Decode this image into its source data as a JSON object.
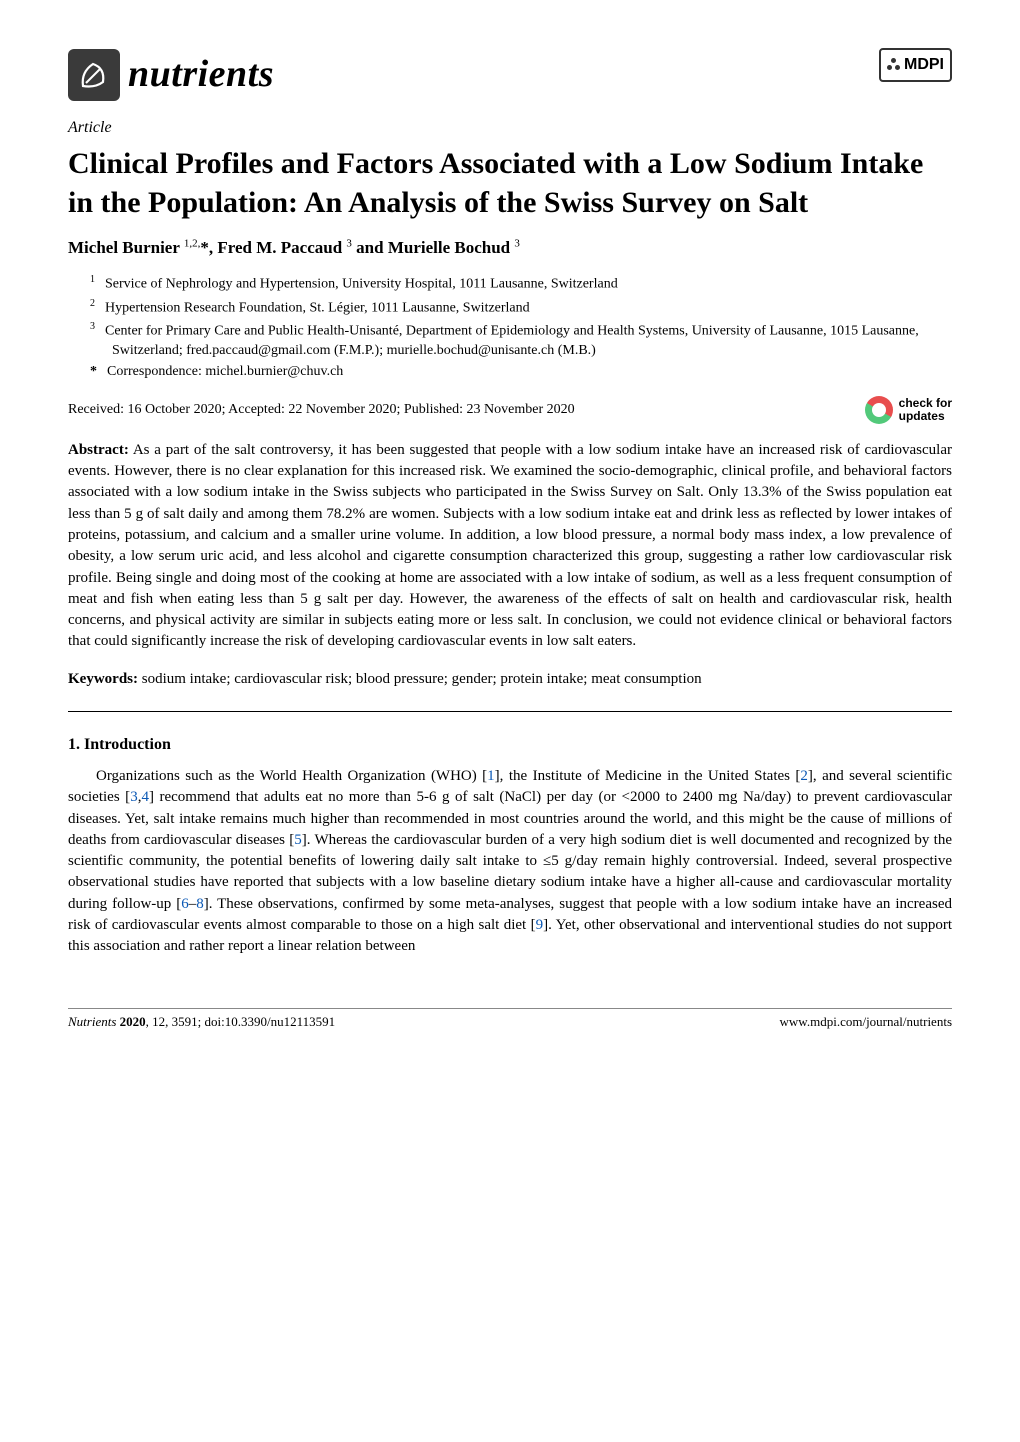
{
  "header": {
    "journal_name": "nutrients",
    "publisher": "MDPI",
    "article_type": "Article",
    "title": "Clinical Profiles and Factors Associated with a Low Sodium Intake in the Population: An Analysis of the Swiss Survey on Salt",
    "authors_html": "Michel Burnier <sup>1,2,</sup>*, Fred M. Paccaud <sup>3</sup> and Murielle Bochud <sup>3</sup>"
  },
  "affiliations": {
    "a1": {
      "num": "1",
      "text": "Service of Nephrology and Hypertension, University Hospital, 1011 Lausanne, Switzerland"
    },
    "a2": {
      "num": "2",
      "text": "Hypertension Research Foundation, St. Légier, 1011 Lausanne, Switzerland"
    },
    "a3": {
      "num": "3",
      "text": "Center for Primary Care and Public Health-Unisanté, Department of Epidemiology and Health Systems, University of Lausanne, 1015 Lausanne, Switzerland; fred.paccaud@gmail.com (F.M.P.); murielle.bochud@unisante.ch (M.B.)"
    },
    "corr": {
      "mark": "*",
      "text": "Correspondence: michel.burnier@chuv.ch"
    }
  },
  "dates": "Received: 16 October 2020; Accepted: 22 November 2020; Published: 23 November 2020",
  "updates": {
    "line1": "check for",
    "line2": "updates"
  },
  "abstract": {
    "label": "Abstract:",
    "text": " As a part of the salt controversy, it has been suggested that people with a low sodium intake have an increased risk of cardiovascular events. However, there is no clear explanation for this increased risk. We examined the socio-demographic, clinical profile, and behavioral factors associated with a low sodium intake in the Swiss subjects who participated in the Swiss Survey on Salt. Only 13.3% of the Swiss population eat less than 5 g of salt daily and among them 78.2% are women. Subjects with a low sodium intake eat and drink less as reflected by lower intakes of proteins, potassium, and calcium and a smaller urine volume. In addition, a low blood pressure, a normal body mass index, a low prevalence of obesity, a low serum uric acid, and less alcohol and cigarette consumption characterized this group, suggesting a rather low cardiovascular risk profile. Being single and doing most of the cooking at home are associated with a low intake of sodium, as well as a less frequent consumption of meat and fish when eating less than 5 g salt per day. However, the awareness of the effects of salt on health and cardiovascular risk, health concerns, and physical activity are similar in subjects eating more or less salt. In conclusion, we could not evidence clinical or behavioral factors that could significantly increase the risk of developing cardiovascular events in low salt eaters."
  },
  "keywords": {
    "label": "Keywords:",
    "text": "  sodium intake; cardiovascular risk; blood pressure; gender; protein intake; meat consumption"
  },
  "section1": {
    "heading": "1. Introduction"
  },
  "intro": {
    "p1a": "Organizations such as the World Health Organization (WHO) [",
    "r1": "1",
    "p1b": "], the Institute of Medicine in the United States [",
    "r2": "2",
    "p1c": "], and several scientific societies [",
    "r3": "3",
    "p1d": ",",
    "r4": "4",
    "p1e": "] recommend that adults eat no more than 5-6 g of salt (NaCl) per day (or <2000 to 2400 mg Na/day) to prevent cardiovascular diseases. Yet, salt intake remains much higher than recommended in most countries around the world, and this might be the cause of millions of deaths from cardiovascular diseases [",
    "r5": "5",
    "p1f": "]. Whereas the cardiovascular burden of a very high sodium diet is well documented and recognized by the scientific community, the potential benefits of lowering daily salt intake to ≤5 g/day remain highly controversial. Indeed, several prospective observational studies have reported that subjects with a low baseline dietary sodium intake have a higher all-cause and cardiovascular mortality during follow-up [",
    "r6": "6",
    "p1g": "–",
    "r8": "8",
    "p1h": "]. These observations, confirmed by some meta-analyses, suggest that people with a low sodium intake have an increased risk of cardiovascular events almost comparable to those on a high salt diet [",
    "r9": "9",
    "p1i": "]. Yet, other observational and interventional studies do not support this association and rather report a linear relation between"
  },
  "footer": {
    "left_italic": "Nutrients ",
    "left_bold": "2020",
    "left_rest": ", 12, 3591; doi:10.3390/nu12113591",
    "right": "www.mdpi.com/journal/nutrients"
  },
  "colors": {
    "link": "#0a58b5",
    "text": "#000000",
    "background": "#ffffff"
  }
}
